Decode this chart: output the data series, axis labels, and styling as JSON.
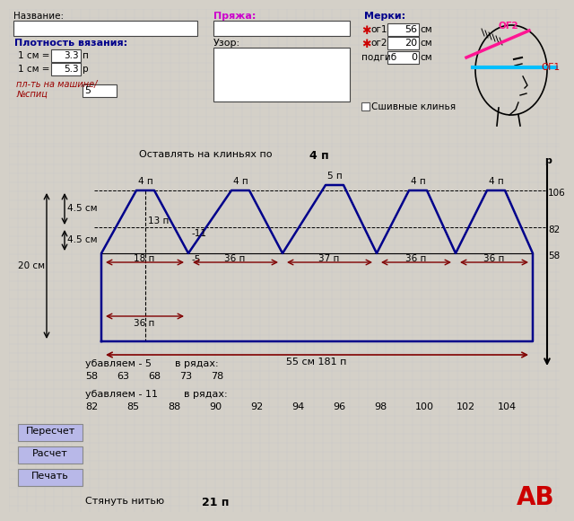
{
  "bg_color": "#d4d0c8",
  "title_label": "Название:",
  "yarn_label": "Пряжа:",
  "measures_label": "Мерки:",
  "og1_label": "ог1",
  "og2_label": "ог2",
  "podgib_label": "подгиб",
  "og1_value": "56",
  "og2_value": "20",
  "podgib_value": "0",
  "sm_label": "см",
  "density_label": "Плотность вязания:",
  "density1_value": "3.3",
  "density1_unit": "п",
  "density2_value": "5.3",
  "density2_unit": "р",
  "machine_value": "5",
  "pattern_label": "Узор:",
  "sewn_label": "Сшивные клинья",
  "ostavlyat_label": "Оставлять на клиньях по",
  "ostavlyat_value": "4 п",
  "r_label": "р",
  "row_106": "106",
  "row_82": "82",
  "row_58": "58",
  "dim_45_1": "4.5 см",
  "dim_45_2": "4.5 см",
  "dim_20": "20 см",
  "peak_labels": [
    "4 п",
    "4 п",
    "5 п",
    "4 п",
    "4 п"
  ],
  "minus11": "-11",
  "minus5": "-5",
  "label13": "13 п",
  "label18": "18 п",
  "total_label": "55 см 181 п",
  "ubavlyaem5_label": "убавляем - 5",
  "v_ryadakh_label": "в рядах:",
  "rows5": [
    "58",
    "63",
    "68",
    "73",
    "78"
  ],
  "ubavlyaem11_label": "убавляем - 11",
  "v_ryadakh2_label": "в рядах:",
  "rows11": [
    "82",
    "85",
    "88",
    "90",
    "92",
    "94",
    "96",
    "98",
    "100",
    "102",
    "104"
  ],
  "pull_label": "Стянуть нитью",
  "pull_value": "21 п",
  "btn1": "Пересчет",
  "btn2": "Расчет",
  "btn3": "Печать",
  "blue_color": "#00008B",
  "dark_red": "#800000",
  "magenta_color": "#cc00cc",
  "cyan_color": "#00BFFF",
  "pink_color": "#FF1493",
  "red_color": "#cc0000",
  "seg_labels": [
    "36 п",
    "37 п",
    "36 п",
    "36 п"
  ],
  "grid_color": "#c8c8c8",
  "btn_color": "#b8b8e8"
}
